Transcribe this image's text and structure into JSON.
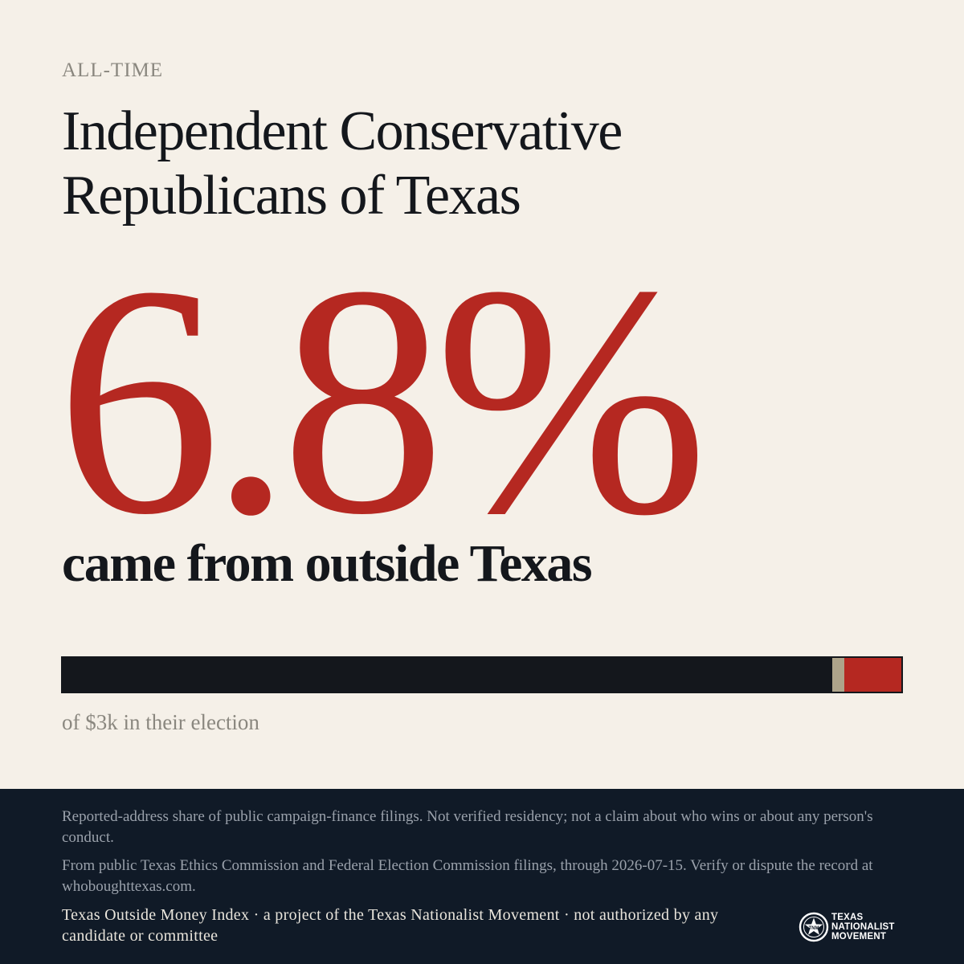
{
  "header": {
    "eyebrow": "ALL-TIME",
    "title": "Independent Conservative Republicans of Texas"
  },
  "stat": {
    "percent_label": "6.8%",
    "description": "came from outside Texas",
    "total_label": "of $3k in their election"
  },
  "bar": {
    "in_state_fraction": 0.918,
    "unknown_fraction": 0.014,
    "outside_fraction": 0.068,
    "colors": {
      "in_state": "#14171c",
      "unknown": "#aea48a",
      "outside": "#b52821"
    }
  },
  "footer": {
    "note1": "Reported-address share of public campaign-finance filings. Not verified residency; not a claim about who wins or about any person's conduct.",
    "note2": "From public Texas Ethics Commission and Federal Election Commission filings, through 2026-07-15. Verify or dispute the record at whoboughttexas.com.",
    "credit": "Texas Outside Money Index · a project of the Texas Nationalist Movement · not authorized by any candidate or committee",
    "logo": {
      "icon": "star-seal-icon",
      "line1": "TEXAS",
      "line2": "NATIONALIST",
      "line3": "MOVEMENT"
    }
  }
}
